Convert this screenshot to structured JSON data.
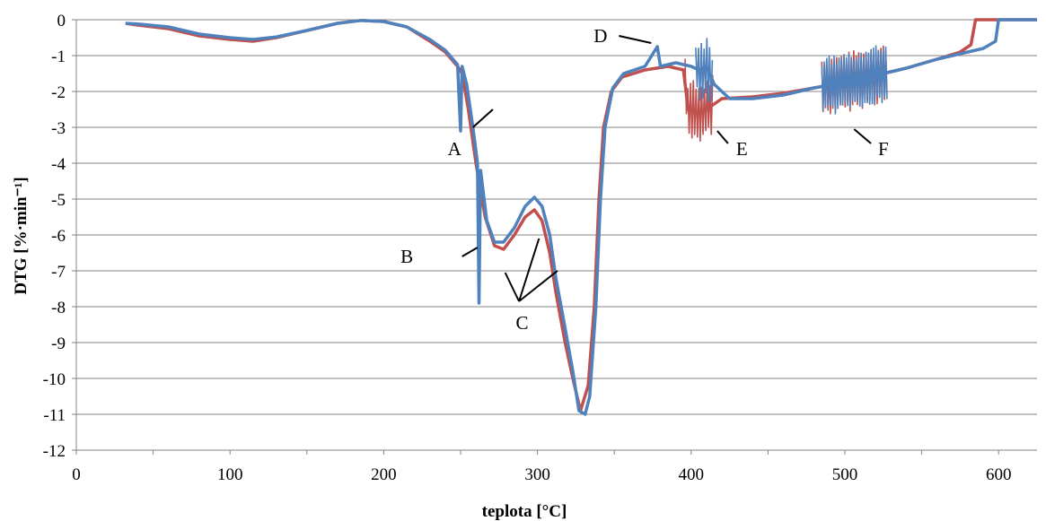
{
  "chart_data": {
    "type": "line",
    "xlabel": "teplota [°C]",
    "ylabel": "DTG [%·min⁻¹]",
    "xlim": [
      0,
      625
    ],
    "ylim": [
      -12,
      0
    ],
    "xticks": [
      0,
      100,
      200,
      300,
      400,
      500,
      600
    ],
    "yticks": [
      0,
      -1,
      -2,
      -3,
      -4,
      -5,
      -6,
      -7,
      -8,
      -9,
      -10,
      -11,
      -12
    ],
    "grid": "horizontal",
    "legend": "none",
    "colors": {
      "series_red": "#c0504d",
      "series_blue": "#4f81bd",
      "grid": "#868686",
      "axis": "#868686"
    },
    "series": [
      {
        "color": "#c0504d",
        "points": [
          [
            32,
            -0.1
          ],
          [
            40,
            -0.15
          ],
          [
            60,
            -0.25
          ],
          [
            80,
            -0.45
          ],
          [
            100,
            -0.55
          ],
          [
            115,
            -0.6
          ],
          [
            130,
            -0.5
          ],
          [
            150,
            -0.3
          ],
          [
            170,
            -0.1
          ],
          [
            185,
            -0.02
          ],
          [
            200,
            -0.05
          ],
          [
            215,
            -0.2
          ],
          [
            230,
            -0.6
          ],
          [
            240,
            -0.9
          ],
          [
            248,
            -1.3
          ],
          [
            251,
            -1.5
          ],
          [
            255,
            -2.5
          ],
          [
            260,
            -4.0
          ],
          [
            266,
            -5.5
          ],
          [
            272,
            -6.3
          ],
          [
            278,
            -6.4
          ],
          [
            285,
            -6.0
          ],
          [
            292,
            -5.5
          ],
          [
            298,
            -5.3
          ],
          [
            303,
            -5.6
          ],
          [
            308,
            -6.5
          ],
          [
            312,
            -7.6
          ],
          [
            318,
            -9.0
          ],
          [
            323,
            -10.0
          ],
          [
            328,
            -10.9
          ],
          [
            333,
            -10.2
          ],
          [
            337,
            -8.0
          ],
          [
            340,
            -5.0
          ],
          [
            343,
            -3.0
          ],
          [
            348,
            -2.0
          ],
          [
            355,
            -1.6
          ],
          [
            370,
            -1.4
          ],
          [
            385,
            -1.3
          ],
          [
            395,
            -1.4
          ],
          [
            398,
            -2.5
          ],
          [
            403,
            -2.6
          ],
          [
            410,
            -2.5
          ],
          [
            420,
            -2.2
          ],
          [
            440,
            -2.15
          ],
          [
            460,
            -2.05
          ],
          [
            480,
            -1.9
          ],
          [
            500,
            -1.75
          ],
          [
            520,
            -1.55
          ],
          [
            540,
            -1.35
          ],
          [
            560,
            -1.1
          ],
          [
            575,
            -0.9
          ],
          [
            582,
            -0.7
          ],
          [
            585,
            0
          ],
          [
            600,
            0
          ],
          [
            625,
            0
          ]
        ]
      },
      {
        "color": "#4f81bd",
        "points": [
          [
            32,
            -0.1
          ],
          [
            40,
            -0.12
          ],
          [
            60,
            -0.2
          ],
          [
            80,
            -0.4
          ],
          [
            100,
            -0.5
          ],
          [
            115,
            -0.55
          ],
          [
            130,
            -0.48
          ],
          [
            150,
            -0.3
          ],
          [
            170,
            -0.1
          ],
          [
            185,
            -0.02
          ],
          [
            200,
            -0.05
          ],
          [
            215,
            -0.2
          ],
          [
            230,
            -0.55
          ],
          [
            240,
            -0.85
          ],
          [
            248,
            -1.25
          ],
          [
            250,
            -3.1
          ],
          [
            251,
            -1.3
          ],
          [
            254,
            -1.8
          ],
          [
            258,
            -3.0
          ],
          [
            261,
            -4.0
          ],
          [
            262,
            -7.9
          ],
          [
            263,
            -4.2
          ],
          [
            267,
            -5.6
          ],
          [
            272,
            -6.2
          ],
          [
            278,
            -6.2
          ],
          [
            285,
            -5.8
          ],
          [
            292,
            -5.2
          ],
          [
            298,
            -4.95
          ],
          [
            303,
            -5.2
          ],
          [
            308,
            -6.0
          ],
          [
            312,
            -7.2
          ],
          [
            318,
            -8.6
          ],
          [
            323,
            -9.8
          ],
          [
            327,
            -10.9
          ],
          [
            331,
            -11.0
          ],
          [
            334,
            -10.5
          ],
          [
            338,
            -8.0
          ],
          [
            341,
            -5.0
          ],
          [
            344,
            -3.0
          ],
          [
            349,
            -1.9
          ],
          [
            356,
            -1.5
          ],
          [
            370,
            -1.3
          ],
          [
            378,
            -0.75
          ],
          [
            380,
            -1.3
          ],
          [
            390,
            -1.2
          ],
          [
            400,
            -1.3
          ],
          [
            405,
            -1.4
          ],
          [
            410,
            -1.3
          ],
          [
            415,
            -1.8
          ],
          [
            420,
            -2.0
          ],
          [
            425,
            -2.2
          ],
          [
            440,
            -2.2
          ],
          [
            460,
            -2.1
          ],
          [
            480,
            -1.9
          ],
          [
            500,
            -1.75
          ],
          [
            520,
            -1.55
          ],
          [
            540,
            -1.35
          ],
          [
            560,
            -1.1
          ],
          [
            575,
            -0.95
          ],
          [
            590,
            -0.8
          ],
          [
            598,
            -0.6
          ],
          [
            600,
            0
          ],
          [
            625,
            0
          ]
        ]
      }
    ],
    "annotations": [
      {
        "label": "A",
        "text_x": 246,
        "text_y": -3.6,
        "line": [
          [
            258,
            -3.0
          ],
          [
            271,
            -2.5
          ]
        ]
      },
      {
        "label": "B",
        "text_x": 215,
        "text_y": -6.6,
        "line": [
          [
            251,
            -6.6
          ],
          [
            261,
            -6.35
          ]
        ]
      },
      {
        "label": "C",
        "text_x": 290,
        "text_y": -8.45,
        "line": [
          [
            288,
            -7.85
          ],
          [
            279,
            -7.05
          ]
        ]
      },
      {
        "label": "D",
        "text_x": 341,
        "text_y": -0.45,
        "line": [
          [
            353,
            -0.45
          ],
          [
            374,
            -0.65
          ]
        ]
      },
      {
        "label": "E",
        "text_x": 433,
        "text_y": -3.6,
        "line": [
          [
            424,
            -3.45
          ],
          [
            417,
            -3.1
          ]
        ]
      },
      {
        "label": "F",
        "text_x": 525,
        "text_y": -3.6,
        "line": [
          [
            517,
            -3.45
          ],
          [
            506,
            -3.05
          ]
        ]
      }
    ]
  }
}
